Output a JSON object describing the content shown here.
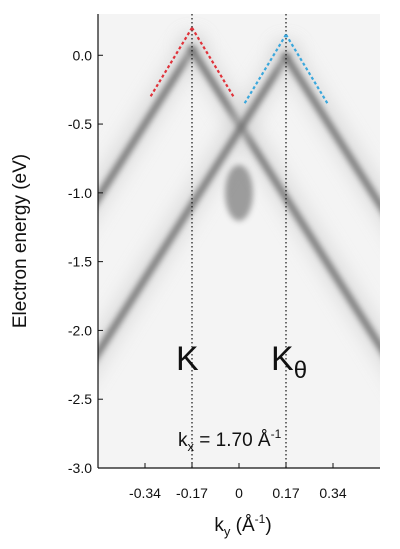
{
  "chart_data": {
    "type": "heatmap",
    "title": "",
    "ylabel": "Electron energy (eV)",
    "xlabel": {
      "main": "k",
      "sub": "y",
      "unit_prefix": " (Å",
      "unit_sup": "-1",
      "unit_suffix": ")"
    },
    "x_ticks": [
      {
        "value": -0.34,
        "label": "-0.34"
      },
      {
        "value": -0.17,
        "label": "-0.17"
      },
      {
        "value": 0,
        "label": "0"
      },
      {
        "value": 0.17,
        "label": "0.17"
      },
      {
        "value": 0.34,
        "label": "0.34"
      }
    ],
    "y_ticks": [
      {
        "value": 0.0,
        "label": "0.0"
      },
      {
        "value": -0.5,
        "label": "-0.5"
      },
      {
        "value": -1.0,
        "label": "-1.0"
      },
      {
        "value": -1.5,
        "label": "-1.5"
      },
      {
        "value": -2.0,
        "label": "-2.0"
      },
      {
        "value": -2.5,
        "label": "-2.5"
      },
      {
        "value": -3.0,
        "label": "-3.0"
      }
    ],
    "xlim": [
      -0.51,
      0.51
    ],
    "ylim": [
      -3.0,
      0.3
    ],
    "vertical_lines": [
      -0.17,
      0.17
    ],
    "cones": [
      {
        "label": "K",
        "label_sub": "",
        "apex_k": -0.17,
        "apex_e": 0.2,
        "guide_color": "#e0323a"
      },
      {
        "label": "K",
        "label_sub": "θ",
        "apex_k": 0.17,
        "apex_e": 0.15,
        "guide_color": "#3aa7dc"
      }
    ],
    "annotation": {
      "main": "k",
      "sub": "x",
      "eq": " = 1.70 Å",
      "sup": "-1"
    }
  }
}
